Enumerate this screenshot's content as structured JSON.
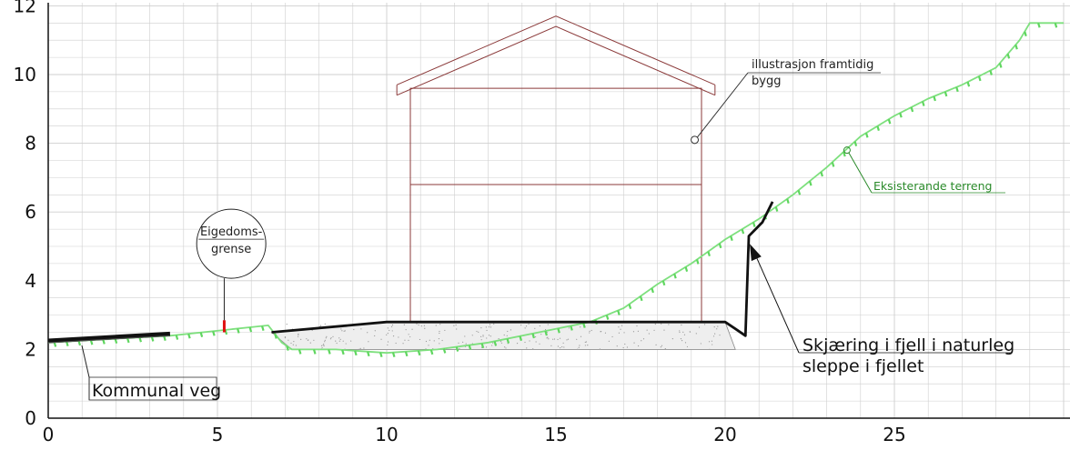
{
  "y_ticks": [
    "0",
    "2",
    "4",
    "6",
    "8",
    "10",
    "12"
  ],
  "x_ticks": [
    "0",
    "5",
    "10",
    "15",
    "20",
    "25"
  ],
  "labels": {
    "kommunal_veg": "Kommunal veg",
    "eigedomsgrense_line1": "Eigedoms-",
    "eigedomsgrense_line2": "grense",
    "illustrasjon_line1": "illustrasjon framtidig",
    "illustrasjon_line2": "bygg",
    "eksisterande_terreng": "Eksisterande terreng",
    "skjaering_line1": "Skjæring i fjell i naturleg",
    "skjaering_line2": "sleppe i fjellet"
  },
  "colors": {
    "grid": "#cfcfcf",
    "axis": "#111111",
    "terrain": "#7ee07e",
    "terrain_tick": "#5fd65f",
    "building": "#8b3a3a",
    "road": "#111111",
    "property_mark": "#e01010",
    "fill_hatch": "#eeeeee",
    "green_text": "#2a8a2a"
  },
  "terrain_profile": [
    [
      0,
      2.2
    ],
    [
      3.6,
      2.4
    ],
    [
      6.5,
      2.7
    ],
    [
      6.9,
      2.2
    ],
    [
      7.2,
      2.0
    ],
    [
      8.5,
      2.0
    ],
    [
      10,
      1.9
    ],
    [
      11.5,
      2.0
    ],
    [
      13,
      2.2
    ],
    [
      14.5,
      2.5
    ],
    [
      16,
      2.8
    ],
    [
      17,
      3.2
    ],
    [
      18,
      3.9
    ],
    [
      19,
      4.5
    ],
    [
      20,
      5.2
    ],
    [
      21,
      5.8
    ],
    [
      22,
      6.5
    ],
    [
      23,
      7.3
    ],
    [
      24,
      8.2
    ],
    [
      25,
      8.8
    ],
    [
      26,
      9.3
    ],
    [
      27,
      9.7
    ],
    [
      28,
      10.2
    ],
    [
      28.7,
      11.0
    ],
    [
      29,
      11.5
    ],
    [
      30,
      11.5
    ]
  ],
  "road": [
    [
      0,
      2.25
    ],
    [
      3.6,
      2.45
    ]
  ],
  "platform": [
    [
      6.6,
      2.5
    ],
    [
      10,
      2.8
    ],
    [
      20,
      2.8
    ],
    [
      20.3,
      2.6
    ],
    [
      20.6,
      2.4
    ],
    [
      20.7,
      5.3
    ],
    [
      21.1,
      5.7
    ],
    [
      21.4,
      6.3
    ]
  ],
  "fill_area": [
    [
      6.6,
      2.5
    ],
    [
      10,
      2.8
    ],
    [
      20,
      2.8
    ],
    [
      20.3,
      2.0
    ],
    [
      7.2,
      2.0
    ]
  ],
  "building": {
    "walls": [
      [
        10.7,
        2.8
      ],
      [
        10.7,
        9.6
      ],
      [
        19.3,
        9.6
      ],
      [
        19.3,
        2.8
      ]
    ],
    "floor_level": 6.8,
    "roof_outer": [
      [
        10.3,
        9.7
      ],
      [
        15,
        11.7
      ],
      [
        19.7,
        9.7
      ]
    ],
    "roof_inner": [
      [
        10.3,
        9.4
      ],
      [
        15,
        11.4
      ],
      [
        19.7,
        9.4
      ]
    ]
  },
  "property_mark_x": 5.2,
  "callouts": {
    "eigedom_circle": [
      5.3,
      4.6
    ],
    "illustrasjon_point": [
      19.1,
      8.1
    ],
    "eksisterande_point": [
      23.6,
      7.8
    ],
    "skjaering_point": [
      20.7,
      5.1
    ]
  }
}
